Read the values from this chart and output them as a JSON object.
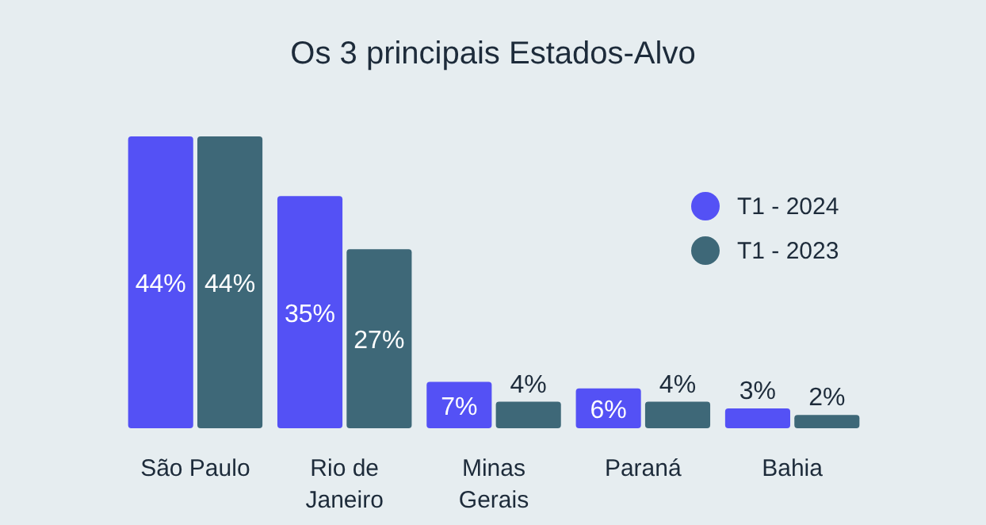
{
  "chart_data": {
    "type": "bar",
    "title": "Os 3 principais Estados-Alvo",
    "categories": [
      "São Paulo",
      "Rio de Janeiro",
      "Minas Gerais",
      "Paraná",
      "Bahia"
    ],
    "series": [
      {
        "name": "T1 - 2024",
        "color": "#5451f5",
        "values": [
          44,
          35,
          7,
          6,
          3
        ],
        "value_labels": [
          "44%",
          "35%",
          "7%",
          "6%",
          "3%"
        ]
      },
      {
        "name": "T1 - 2023",
        "color": "#3e6878",
        "values": [
          44,
          27,
          4,
          4,
          2
        ],
        "value_labels": [
          "44%",
          "27%",
          "4%",
          "4%",
          "2%"
        ]
      }
    ],
    "legend": "right",
    "tick_labels": "x"
  }
}
